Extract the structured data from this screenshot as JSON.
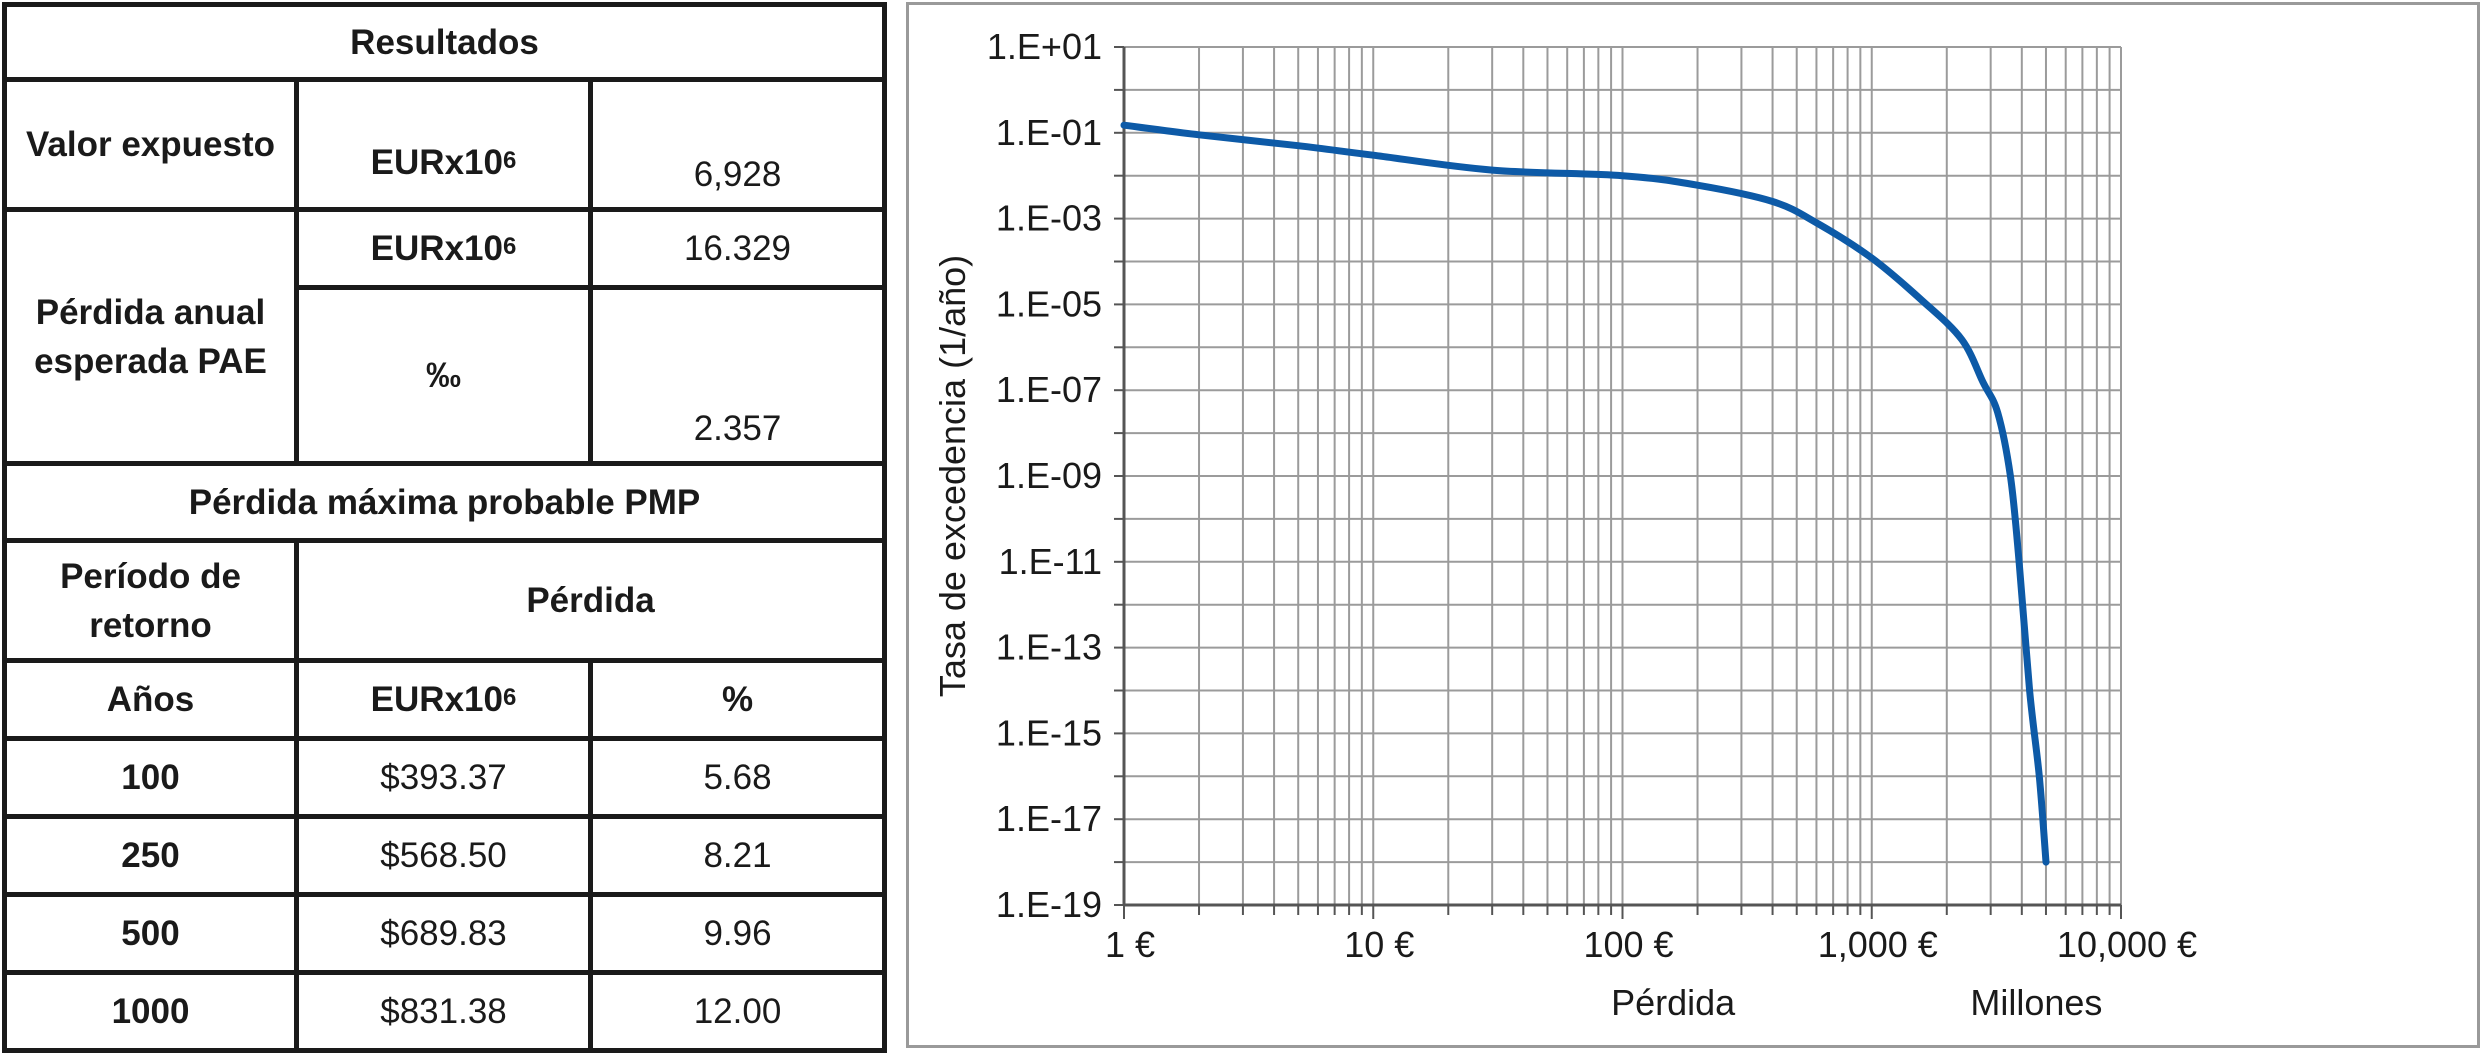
{
  "table": {
    "title": "Resultados",
    "exposed": {
      "label": "Valor expuesto",
      "unit": "EURx10",
      "exp": "6",
      "value": "6,928"
    },
    "pae": {
      "label": "Pérdida anual esperada PAE",
      "unit": "EURx10",
      "exp": "6",
      "value": "16.329",
      "unit2": "‰",
      "value2": "2.357"
    },
    "pmp": {
      "title": "Pérdida máxima probable PMP",
      "period_label": "Período de retorno",
      "loss_label": "Pérdida",
      "years_label": "Años",
      "unit": "EURx10",
      "exp": "6",
      "pct_label": "%",
      "rows": [
        {
          "years": "100",
          "loss": "$393.37",
          "pct": "5.68"
        },
        {
          "years": "250",
          "loss": "$568.50",
          "pct": "8.21"
        },
        {
          "years": "500",
          "loss": "$689.83",
          "pct": "9.96"
        },
        {
          "years": "1000",
          "loss": "$831.38",
          "pct": "12.00"
        }
      ]
    }
  },
  "chart_data": {
    "type": "line",
    "title": "",
    "xlabel": "Pérdida",
    "xlabel_units": "Millones",
    "ylabel": "Tasa de excedencia (1/año)",
    "x_scale": "log",
    "y_scale": "log",
    "xlim": [
      1,
      10000
    ],
    "ylim": [
      1e-19,
      10
    ],
    "x_tick_labels": [
      "1 €",
      "10 €",
      "100 €",
      "1,000 €",
      "10,000 €"
    ],
    "y_tick_labels": [
      "1.E+01",
      "1.E-01",
      "1.E-03",
      "1.E-05",
      "1.E-07",
      "1.E-09",
      "1.E-11",
      "1.E-13",
      "1.E-15",
      "1.E-17",
      "1.E-19"
    ],
    "grid": true,
    "series_color": "#0d5aa7",
    "series": [
      {
        "x": [
          1,
          2,
          5,
          10,
          30,
          100,
          200,
          400,
          600,
          1000,
          1600,
          2300,
          2800,
          3200,
          3600,
          3900,
          4300,
          4700,
          5000
        ],
        "y": [
          0.15,
          0.09,
          0.05,
          0.03,
          0.0135,
          0.01,
          0.006,
          0.0025,
          0.0008,
          0.00012,
          1.2e-05,
          1.5e-06,
          1.5e-07,
          3e-08,
          1e-09,
          1e-11,
          1e-14,
          1e-16,
          1e-18
        ]
      }
    ]
  }
}
